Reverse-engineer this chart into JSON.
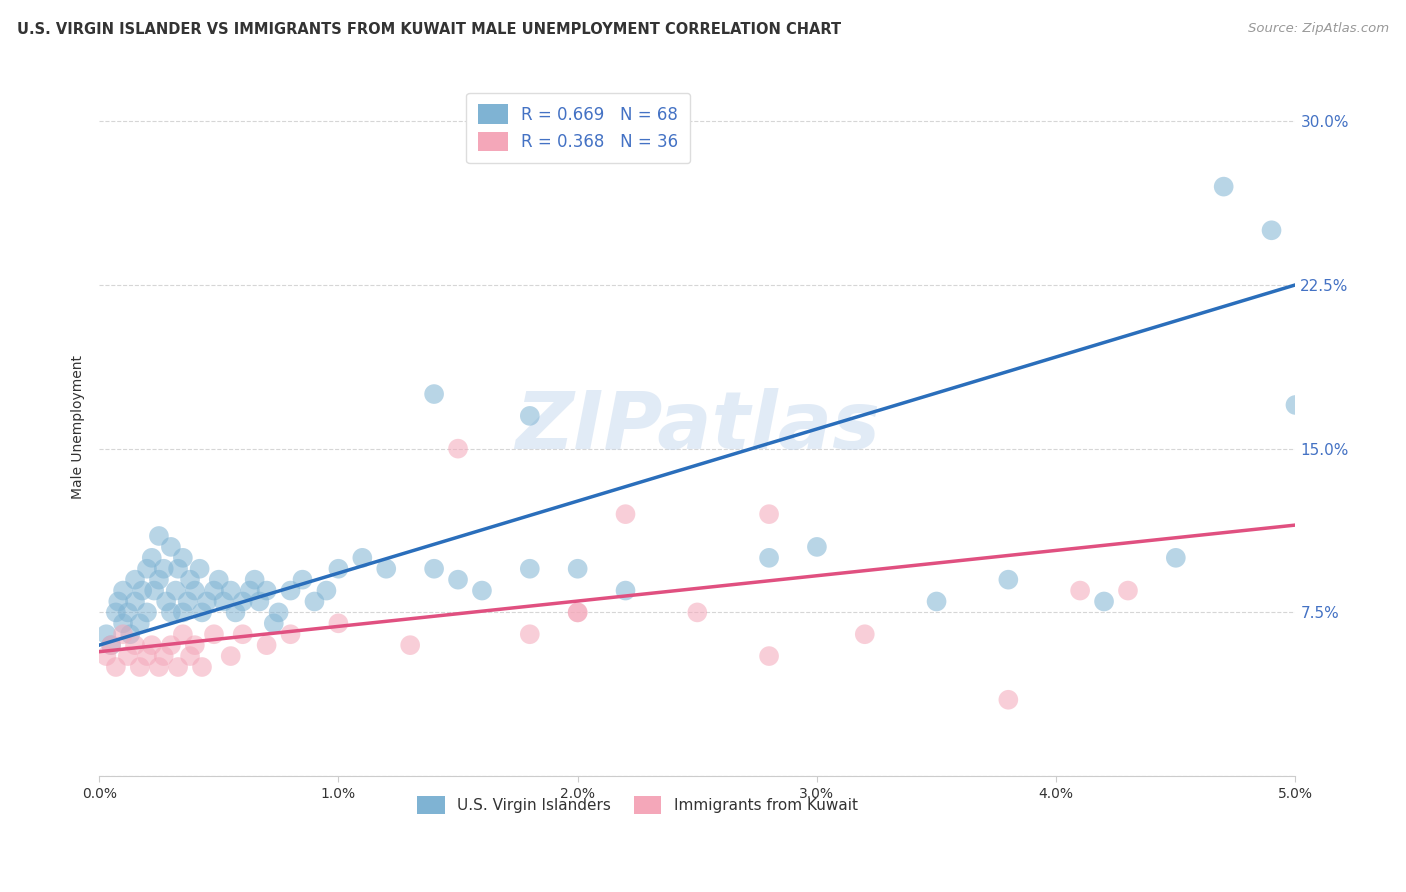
{
  "title": "U.S. VIRGIN ISLANDER VS IMMIGRANTS FROM KUWAIT MALE UNEMPLOYMENT CORRELATION CHART",
  "source": "Source: ZipAtlas.com",
  "ylabel": "Male Unemployment",
  "ytick_labels": [
    "",
    "7.5%",
    "15.0%",
    "22.5%",
    "30.0%"
  ],
  "ytick_values": [
    0.0,
    0.075,
    0.15,
    0.225,
    0.3
  ],
  "xlim": [
    0.0,
    0.05
  ],
  "ylim": [
    0.0,
    0.32
  ],
  "blue_R": "0.669",
  "blue_N": "68",
  "pink_R": "0.368",
  "pink_N": "36",
  "blue_scatter_color": "#7fb3d3",
  "pink_scatter_color": "#f4a7b9",
  "blue_line_color": "#2a6ebb",
  "pink_line_color": "#e05080",
  "legend_label_blue": "U.S. Virgin Islanders",
  "legend_label_pink": "Immigrants from Kuwait",
  "watermark_color": "#c5d8ee",
  "background_color": "#ffffff",
  "grid_color": "#cccccc",
  "blue_scatter_x": [
    0.0003,
    0.0005,
    0.0007,
    0.0008,
    0.001,
    0.001,
    0.0012,
    0.0013,
    0.0015,
    0.0015,
    0.0017,
    0.0018,
    0.002,
    0.002,
    0.0022,
    0.0023,
    0.0025,
    0.0025,
    0.0027,
    0.0028,
    0.003,
    0.003,
    0.0032,
    0.0033,
    0.0035,
    0.0035,
    0.0037,
    0.0038,
    0.004,
    0.0042,
    0.0043,
    0.0045,
    0.0048,
    0.005,
    0.0052,
    0.0055,
    0.0057,
    0.006,
    0.0063,
    0.0065,
    0.0067,
    0.007,
    0.0073,
    0.0075,
    0.008,
    0.0085,
    0.009,
    0.0095,
    0.01,
    0.011,
    0.012,
    0.014,
    0.015,
    0.016,
    0.018,
    0.02,
    0.022,
    0.028,
    0.03,
    0.035,
    0.038,
    0.042,
    0.045,
    0.047,
    0.049,
    0.05,
    0.014,
    0.018
  ],
  "blue_scatter_y": [
    0.065,
    0.06,
    0.075,
    0.08,
    0.07,
    0.085,
    0.075,
    0.065,
    0.09,
    0.08,
    0.07,
    0.085,
    0.095,
    0.075,
    0.1,
    0.085,
    0.09,
    0.11,
    0.095,
    0.08,
    0.105,
    0.075,
    0.085,
    0.095,
    0.1,
    0.075,
    0.08,
    0.09,
    0.085,
    0.095,
    0.075,
    0.08,
    0.085,
    0.09,
    0.08,
    0.085,
    0.075,
    0.08,
    0.085,
    0.09,
    0.08,
    0.085,
    0.07,
    0.075,
    0.085,
    0.09,
    0.08,
    0.085,
    0.095,
    0.1,
    0.095,
    0.095,
    0.09,
    0.085,
    0.095,
    0.095,
    0.085,
    0.1,
    0.105,
    0.08,
    0.09,
    0.08,
    0.1,
    0.27,
    0.25,
    0.17,
    0.175,
    0.165
  ],
  "pink_scatter_x": [
    0.0003,
    0.0005,
    0.0007,
    0.001,
    0.0012,
    0.0015,
    0.0017,
    0.002,
    0.0022,
    0.0025,
    0.0027,
    0.003,
    0.0033,
    0.0035,
    0.0038,
    0.004,
    0.0043,
    0.0048,
    0.0055,
    0.006,
    0.007,
    0.008,
    0.01,
    0.013,
    0.015,
    0.018,
    0.02,
    0.022,
    0.025,
    0.028,
    0.032,
    0.038,
    0.041,
    0.043,
    0.02,
    0.028
  ],
  "pink_scatter_y": [
    0.055,
    0.06,
    0.05,
    0.065,
    0.055,
    0.06,
    0.05,
    0.055,
    0.06,
    0.05,
    0.055,
    0.06,
    0.05,
    0.065,
    0.055,
    0.06,
    0.05,
    0.065,
    0.055,
    0.065,
    0.06,
    0.065,
    0.07,
    0.06,
    0.15,
    0.065,
    0.075,
    0.12,
    0.075,
    0.055,
    0.065,
    0.035,
    0.085,
    0.085,
    0.075,
    0.12
  ],
  "blue_trend_x": [
    0.0,
    0.05
  ],
  "blue_trend_y": [
    0.06,
    0.225
  ],
  "pink_trend_x": [
    0.0,
    0.05
  ],
  "pink_trend_y": [
    0.057,
    0.115
  ],
  "xtick_values": [
    0.0,
    0.01,
    0.02,
    0.03,
    0.04,
    0.05
  ],
  "xtick_labels": [
    "0.0%",
    "1.0%",
    "2.0%",
    "3.0%",
    "4.0%",
    "5.0%"
  ]
}
